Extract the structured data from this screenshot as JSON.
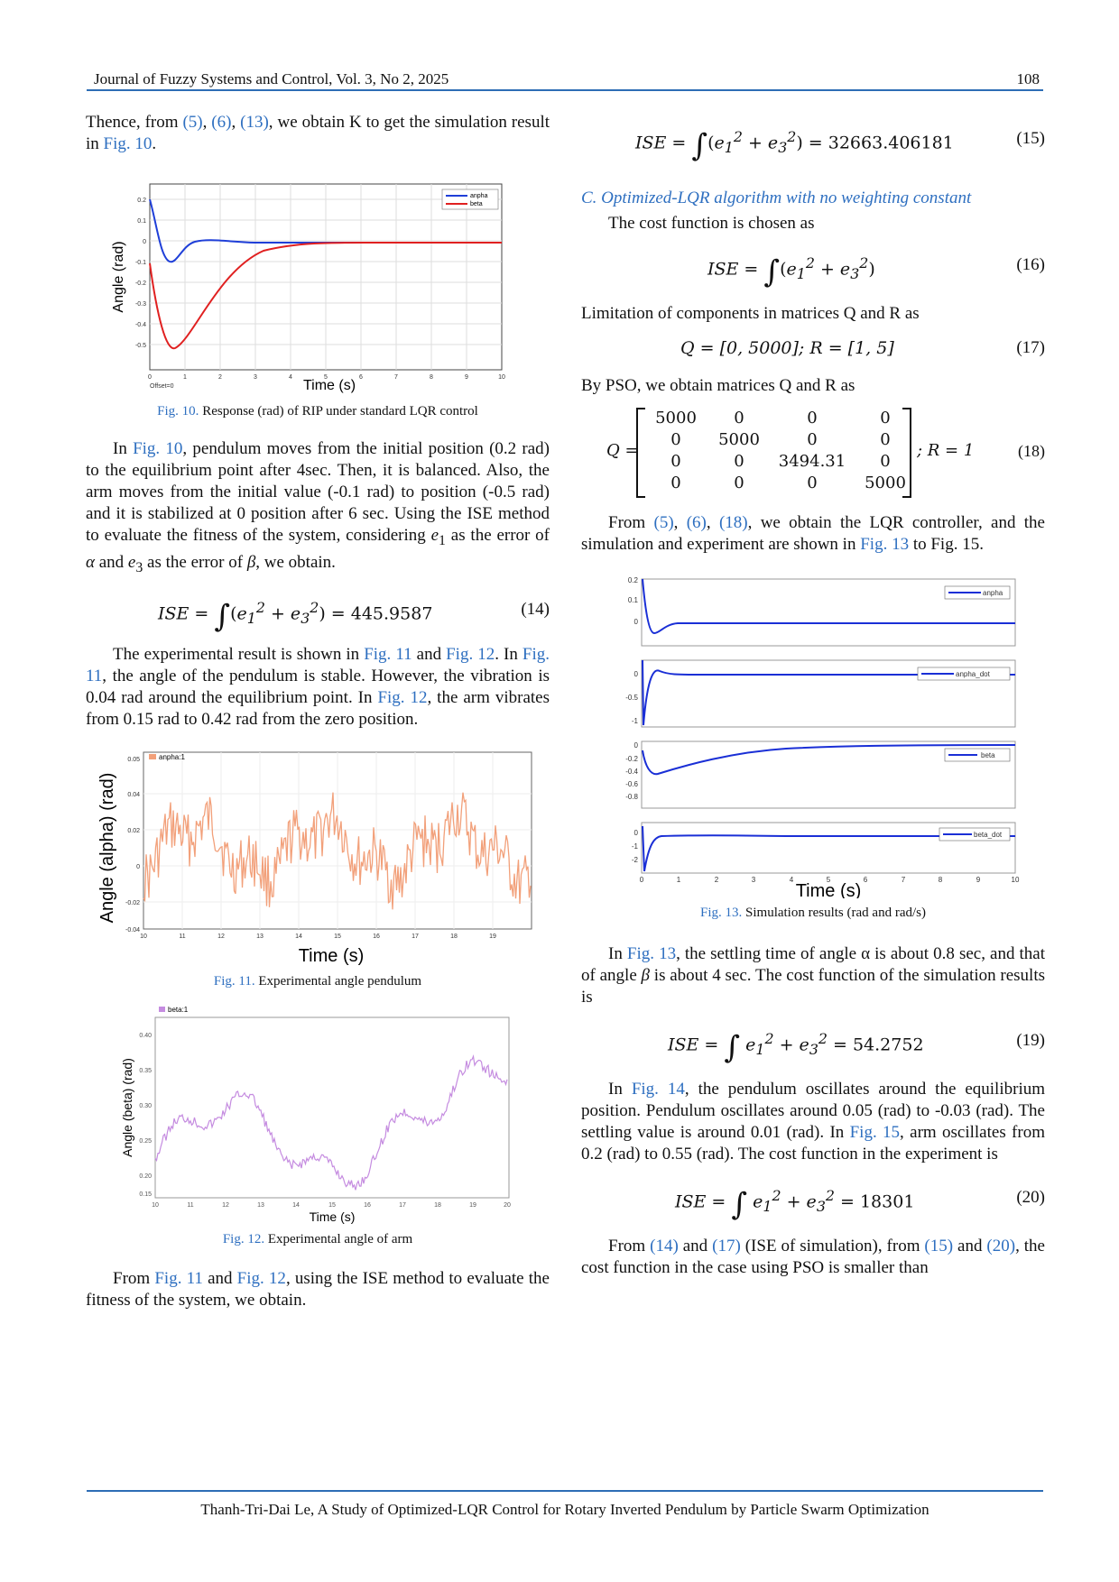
{
  "header": {
    "journal": "Journal of Fuzzy Systems and Control, Vol. 3, No 2, 2025",
    "page": "108"
  },
  "left": {
    "p1": {
      "a": "Thence, from ",
      "r1": "(5)",
      "c1": ", ",
      "r2": "(6)",
      "c2": ", ",
      "r3": "(13)",
      "b": ", we obtain K to get the simulation result in ",
      "r4": "Fig. 10",
      "e": "."
    },
    "fig10": {
      "caption_ref": "Fig. 10.",
      "caption": " Response (rad) of RIP under standard LQR control",
      "xlabel": "Time (s)",
      "ylabel": "Angle (rad)",
      "offset": "Offset=0",
      "legend": [
        "anpha",
        "beta"
      ]
    },
    "p2": {
      "a": "In ",
      "r1": "Fig. 10",
      "b": ", pendulum moves from the initial position (0.2 rad) to the equilibrium point after 4sec. Then, it is balanced. Also, the arm moves from the initial value (-0.1 rad) to position (-0.5 rad) and it is stabilized at 0 position after 6 sec. Using the ISE method to evaluate the fitness of the system, considering ",
      "e1": "e",
      "s1": "1",
      "c": " as the error of ",
      "alpha": "α",
      "d": " and ",
      "e3": "e",
      "s3": "3",
      "f": " as the error of ",
      "beta": "β",
      "g": ", we obtain."
    },
    "eq14": {
      "lhs": "ISE = ",
      "body": "(e",
      "rest": " + e",
      "val": ") = 445.9587",
      "num": "(14)"
    },
    "p3": {
      "a": "The experimental result is shown in ",
      "r1": "Fig. 11",
      "b": " and ",
      "r2": "Fig. 12",
      "c": ". In ",
      "r3": "Fig. 11",
      "d": ", the angle of the pendulum is stable. However, the vibration is 0.04 rad around the equilibrium point. In ",
      "r4": "Fig. 12",
      "e": ", the arm vibrates from 0.15 rad to 0.42 rad from the zero position."
    },
    "fig11": {
      "caption_ref": "Fig. 11.",
      "caption": " Experimental angle pendulum",
      "legend": "anpha:1",
      "xlabel": "Time (s)",
      "ylabel": "Angle (alpha) (rad)"
    },
    "fig12": {
      "caption_ref": "Fig. 12.",
      "caption": " Experimental angle of arm",
      "legend": "beta:1",
      "xlabel": "Time (s)",
      "ylabel": "Angle (beta) (rad)"
    },
    "p4": {
      "a": "From ",
      "r1": "Fig. 11",
      "b": " and ",
      "r2": "Fig. 12",
      "c": ", using the ISE method to evaluate the fitness of the system, we obtain."
    }
  },
  "right": {
    "eq15": {
      "lhs": "ISE = ",
      "val": ") = 32663.406181",
      "num": "(15)"
    },
    "section": "C.  Optimized-LQR algorithm with no weighting constant",
    "p5": "The cost function is chosen as",
    "eq16": {
      "lhs": "ISE = ",
      "val": ")",
      "num": "(16)"
    },
    "p6": "Limitation of components in matrices Q and R as",
    "eq17": {
      "text": "Q  =  [0, 5000];  R  =  [1, 5]",
      "num": "(17)"
    },
    "p7": "By PSO, we obtain matrices Q and R as",
    "eq18": {
      "lhs": "Q =",
      "rows": [
        [
          "5000",
          "0",
          "0",
          "0"
        ],
        [
          "0",
          "5000",
          "0",
          "0"
        ],
        [
          "0",
          "0",
          "3494.31",
          "0"
        ],
        [
          "0",
          "0",
          "0",
          "5000"
        ]
      ],
      "tail": "; R = 1",
      "num": "(18)"
    },
    "p8": {
      "a": "From ",
      "r1": "(5)",
      "c1": ", ",
      "r2": "(6)",
      "c2": ", ",
      "r3": "(18)",
      "b": ", we obtain the LQR controller, and the simulation and experiment are shown in ",
      "r4": "Fig. 13",
      "c": " to Fig. 15."
    },
    "fig13": {
      "caption_ref": "Fig. 13.",
      "caption": " Simulation results (rad and rad/s)",
      "xlabel": "Time (s)",
      "legends": [
        "anpha",
        "anpha_dot",
        "beta",
        "beta_dot"
      ]
    },
    "p9": {
      "a": "In ",
      "r1": "Fig. 13",
      "b": ", the settling time of angle α is about 0.8 sec, and that of angle ",
      "beta": "β",
      "c": " is about 4 sec. The cost function of the simulation results is"
    },
    "eq19": {
      "lhs": "ISE = ",
      "val": " = 54.2752",
      "num": "(19)"
    },
    "p10": {
      "a": "In ",
      "r1": "Fig. 14",
      "b": ", the pendulum oscillates around the equilibrium position. Pendulum oscillates around 0.05 (rad) to -0.03 (rad). The settling value is around 0.01 (rad). In ",
      "r2": "Fig. 15",
      "c": ", arm oscillates from 0.2 (rad) to 0.55 (rad). The cost function in the experiment is"
    },
    "eq20": {
      "lhs": "ISE = ",
      "val": " = 18301",
      "num": "(20)"
    },
    "p11": {
      "a": "From ",
      "r1": "(14)",
      "b": " and ",
      "r2": "(17)",
      "c": " (ISE of simulation), from ",
      "r3": "(15)",
      "d": " and ",
      "r4": "(20)",
      "e": ", the cost function in the case using PSO is smaller than"
    }
  },
  "footer": "Thanh-Tri-Dai Le, A Study of Optimized-LQR Control for Rotary Inverted Pendulum by Particle Swarm Optimization",
  "colors": {
    "accent": "#2e6fc0",
    "alpha_line": "#1f3fd8",
    "beta_line": "#e02020",
    "exp_alpha": "#f2a07a",
    "exp_beta": "#c58ce0"
  }
}
